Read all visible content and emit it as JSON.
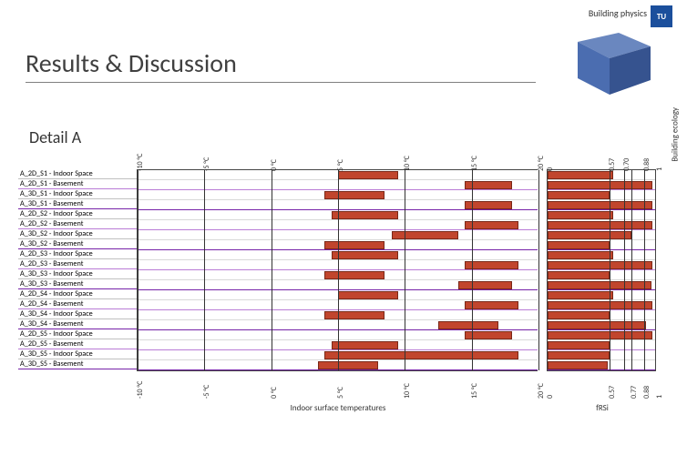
{
  "title": "Results & Discussion",
  "subtitle": "Detail A",
  "logo": {
    "bp": "Building physics",
    "be": "Building ecology",
    "tu": "TU"
  },
  "temp_axis": {
    "title": "Indoor surface temperatures",
    "min": -10,
    "max": 20,
    "ticks": [
      -10,
      -5,
      0,
      5,
      10,
      15,
      20
    ],
    "unit_suffix": " °C"
  },
  "frsi_axis": {
    "title": "fRSi",
    "min": 0,
    "max": 1,
    "ticks_top": [
      0,
      0.57,
      0.7,
      0.88,
      1
    ],
    "ticks_bot": [
      0,
      0.57,
      0.77,
      0.88,
      1
    ]
  },
  "colors": {
    "bar": "#c1452d",
    "bar_border": "#7a2818",
    "quad_sep": "#7622a8",
    "pair_sep": "#b97bd6",
    "grid": "#333333",
    "bg": "#ffffff",
    "cube_face1": "#4b6db0",
    "cube_face2": "#6a87bf",
    "cube_face3": "#36538f"
  },
  "rows": [
    {
      "label": "A_2D_S1 - Indoor Space",
      "temp_lo": 5.0,
      "temp_hi": 9.5,
      "frsi": 0.6
    },
    {
      "label": "A_2D_S1 - Basement",
      "temp_lo": 14.5,
      "temp_hi": 18.0,
      "frsi": 0.96
    },
    {
      "label": "A_3D_S1 - Indoor Space",
      "temp_lo": 4.0,
      "temp_hi": 8.5,
      "frsi": 0.57
    },
    {
      "label": "A_3D_S1 - Basement",
      "temp_lo": 14.5,
      "temp_hi": 18.0,
      "frsi": 0.96
    },
    {
      "label": "A_2D_S2 - Indoor Space",
      "temp_lo": 4.5,
      "temp_hi": 9.5,
      "frsi": 0.6
    },
    {
      "label": "A_2D_S2 - Basement",
      "temp_lo": 14.5,
      "temp_hi": 18.5,
      "frsi": 0.96
    },
    {
      "label": "A_3D_S2 - Indoor Space",
      "temp_lo": 9.0,
      "temp_hi": 14.0,
      "frsi": 0.77
    },
    {
      "label": "A_3D_S2 - Basement",
      "temp_lo": 4.0,
      "temp_hi": 8.5,
      "frsi": 0.57
    },
    {
      "label": "A_2D_S3 - Indoor Space",
      "temp_lo": 4.5,
      "temp_hi": 9.5,
      "frsi": 0.6
    },
    {
      "label": "A_2D_S3 - Basement",
      "temp_lo": 14.5,
      "temp_hi": 18.5,
      "frsi": 0.96
    },
    {
      "label": "A_3D_S3 - Indoor Space",
      "temp_lo": 4.0,
      "temp_hi": 8.5,
      "frsi": 0.57
    },
    {
      "label": "A_3D_S3 - Basement",
      "temp_lo": 14.0,
      "temp_hi": 18.0,
      "frsi": 0.95
    },
    {
      "label": "A_2D_S4 - Indoor Space",
      "temp_lo": 5.0,
      "temp_hi": 9.5,
      "frsi": 0.6
    },
    {
      "label": "A_2D_S4 - Basement",
      "temp_lo": 14.5,
      "temp_hi": 18.5,
      "frsi": 0.96
    },
    {
      "label": "A_3D_S4 - Indoor Space",
      "temp_lo": 4.0,
      "temp_hi": 8.5,
      "frsi": 0.57
    },
    {
      "label": "A_3D_S4 - Basement",
      "temp_lo": 12.5,
      "temp_hi": 17.0,
      "frsi": 0.9
    },
    {
      "label": "A_2D_S5 - Indoor Space",
      "temp_lo": 14.5,
      "temp_hi": 18.0,
      "frsi": 0.96
    },
    {
      "label": "A_2D_S5 - Basement",
      "temp_lo": 4.5,
      "temp_hi": 9.5,
      "frsi": 0.57
    },
    {
      "label": "A_3D_S5 - Indoor Space",
      "temp_lo": 4.0,
      "temp_hi": 18.5,
      "frsi": 0.57
    },
    {
      "label": "A_3D_S5 - Basement",
      "temp_lo": 3.5,
      "temp_hi": 8.0,
      "frsi": 0.55
    }
  ]
}
